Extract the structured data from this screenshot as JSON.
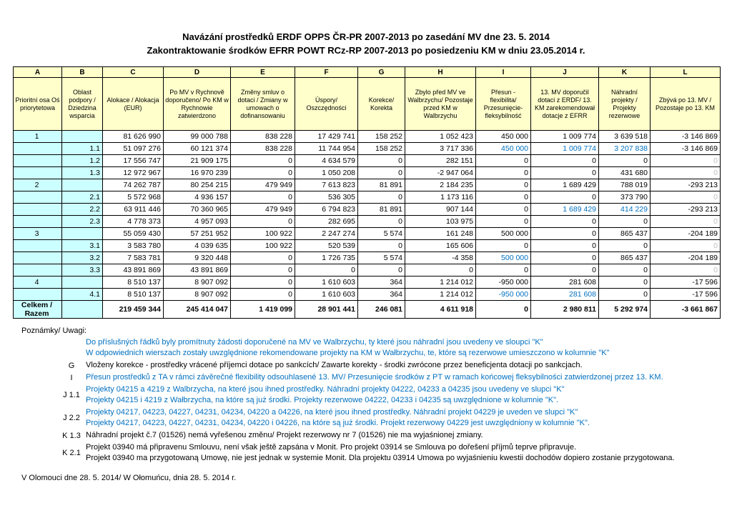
{
  "title": {
    "line1": "Navázání prostředků ERDF OPPS ČR-PR 2007-2013 po zasedání MV dne 23. 5. 2014",
    "line2": "Zakontraktowanie środków EFRR POWT RCz-RP 2007-2013 po posiedzeniu KM w dniu 23.05.2014 r."
  },
  "colors": {
    "header_fill": "#ffffcc",
    "axis_column_fill": "#ccffff",
    "accent_blue": "#0070c0",
    "muted_gray": "#bfbfbf"
  },
  "table": {
    "column_letters": [
      "A",
      "B",
      "C",
      "D",
      "E",
      "F",
      "G",
      "H",
      "I",
      "J",
      "K",
      "L"
    ],
    "column_headers": [
      "Prioritní osa Oś priorytetowa",
      "Oblast podpory / Dziedzina wsparcia",
      "Alokace / Alokacja (EUR)",
      "Po MV v Rychnově doporučeno/ Po KM w Rychnowie zatwierdzono",
      "Změny smluv o dotaci / Zmiany w umowach o dofinansowaniu",
      "Úspory/ Oszczędności",
      "Korekce/ Korekta",
      "Zbylo před MV ve Walbrzychu/ Pozostaje przed KM w Walbrzychu",
      "Přesun - flexibilita/ Przesunięcie- fleksybilność",
      "13. MV doporučil dotaci z ERDF/ 13. KM zarekomendował dotacje z EFRR",
      "Náhradní projekty / Projekty rezerwowe",
      "Zbývá po 13. MV / Pozostaje po 13. KM"
    ],
    "rows": [
      {
        "a": "1",
        "b": "",
        "values": [
          "81 626 990",
          "99 000 788",
          "838 228",
          "17 429 741",
          "158 252",
          "1 052 423",
          "450 000",
          "1 009 774",
          "3 639 518",
          "-3 146 869"
        ],
        "colors": [
          "",
          "",
          "",
          "",
          "",
          "",
          "",
          "",
          "",
          ""
        ]
      },
      {
        "a": "",
        "b": "1.1",
        "values": [
          "51 097 276",
          "60 121 374",
          "838 228",
          "11 744 954",
          "158 252",
          "3 717 336",
          "450 000",
          "1 009 774",
          "3 207 838",
          "-3 146 869"
        ],
        "colors": [
          "",
          "",
          "",
          "",
          "",
          "",
          "blue",
          "blue",
          "blue",
          ""
        ]
      },
      {
        "a": "",
        "b": "1.2",
        "values": [
          "17 556 747",
          "21 909 175",
          "0",
          "4 634 579",
          "0",
          "282 151",
          "0",
          "0",
          "0",
          "0"
        ],
        "colors": [
          "",
          "",
          "",
          "",
          "",
          "",
          "",
          "",
          "",
          "gray"
        ]
      },
      {
        "a": "",
        "b": "1.3",
        "values": [
          "12 972 967",
          "16 970 239",
          "0",
          "1 050 208",
          "0",
          "-2 947 064",
          "0",
          "0",
          "431 680",
          "0"
        ],
        "colors": [
          "",
          "",
          "",
          "",
          "",
          "",
          "",
          "",
          "",
          "gray"
        ]
      },
      {
        "a": "2",
        "b": "",
        "values": [
          "74 262 787",
          "80 254 215",
          "479 949",
          "7 613 823",
          "81 891",
          "2 184 235",
          "0",
          "1 689 429",
          "788 019",
          "-293 213"
        ],
        "colors": [
          "",
          "",
          "",
          "",
          "",
          "",
          "",
          "",
          "",
          ""
        ]
      },
      {
        "a": "",
        "b": "2.1",
        "values": [
          "5 572 968",
          "4 936 157",
          "0",
          "536 305",
          "0",
          "1 173 116",
          "0",
          "0",
          "373 790",
          "0"
        ],
        "colors": [
          "",
          "",
          "",
          "",
          "",
          "",
          "",
          "",
          "",
          "gray"
        ]
      },
      {
        "a": "",
        "b": "2.2",
        "values": [
          "63 911 446",
          "70 360 965",
          "479 949",
          "6 794 823",
          "81 891",
          "907 144",
          "0",
          "1 689 429",
          "414 229",
          "-293 213"
        ],
        "colors": [
          "",
          "",
          "",
          "",
          "",
          "",
          "",
          "blue",
          "blue",
          ""
        ]
      },
      {
        "a": "",
        "b": "2.3",
        "values": [
          "4 778 373",
          "4 957 093",
          "0",
          "282 695",
          "0",
          "103 975",
          "0",
          "0",
          "0",
          "0"
        ],
        "colors": [
          "",
          "",
          "",
          "",
          "",
          "",
          "",
          "",
          "",
          "gray"
        ]
      },
      {
        "a": "3",
        "b": "",
        "values": [
          "55 059 430",
          "57 251 952",
          "100 922",
          "2 247 274",
          "5 574",
          "161 248",
          "500 000",
          "0",
          "865 437",
          "-204 189"
        ],
        "colors": [
          "",
          "",
          "",
          "",
          "",
          "",
          "",
          "",
          "",
          ""
        ]
      },
      {
        "a": "",
        "b": "3.1",
        "values": [
          "3 583 780",
          "4 039 635",
          "100 922",
          "520 539",
          "0",
          "165 606",
          "0",
          "0",
          "0",
          "0"
        ],
        "colors": [
          "",
          "",
          "",
          "",
          "",
          "",
          "",
          "",
          "",
          "gray"
        ]
      },
      {
        "a": "",
        "b": "3.2",
        "values": [
          "7 583 781",
          "9 320 448",
          "0",
          "1 726 735",
          "5 574",
          "-4 358",
          "500 000",
          "0",
          "865 437",
          "-204 189"
        ],
        "colors": [
          "",
          "",
          "",
          "",
          "",
          "",
          "blue",
          "",
          "",
          ""
        ]
      },
      {
        "a": "",
        "b": "3.3",
        "values": [
          "43 891 869",
          "43 891 869",
          "0",
          "0",
          "0",
          "0",
          "0",
          "0",
          "0",
          "0"
        ],
        "colors": [
          "",
          "",
          "",
          "",
          "",
          "",
          "",
          "",
          "",
          "gray"
        ]
      },
      {
        "a": "4",
        "b": "",
        "values": [
          "8 510 137",
          "8 907 092",
          "0",
          "1 610 603",
          "364",
          "1 214 012",
          "-950 000",
          "281 608",
          "0",
          "-17 596"
        ],
        "colors": [
          "",
          "",
          "",
          "",
          "",
          "",
          "",
          "",
          "",
          ""
        ]
      },
      {
        "a": "",
        "b": "4.1",
        "values": [
          "8 510 137",
          "8 907 092",
          "0",
          "1 610 603",
          "364",
          "1 214 012",
          "-950 000",
          "281 608",
          "0",
          "-17 596"
        ],
        "colors": [
          "",
          "",
          "",
          "",
          "",
          "",
          "blue",
          "blue",
          "",
          ""
        ]
      },
      {
        "a": "Celkem / Razem",
        "b": "",
        "values": [
          "219 459 344",
          "245 414 047",
          "1 419 099",
          "28 901 441",
          "246 081",
          "4 611 918",
          "0",
          "2 980 811",
          "5 292 974",
          "-3 661 867"
        ],
        "colors": [
          "",
          "",
          "",
          "",
          "",
          "",
          "",
          "",
          "",
          ""
        ],
        "total": true
      }
    ]
  },
  "notes": {
    "heading": "Poznámky/ Uwagi:",
    "items": [
      {
        "label": "",
        "lines": [
          {
            "text": "Do příslušných řádků byly promítnuty žádosti doporučené na MV ve Walbrzychu, ty které jsou náhradní jsou uvedeny ve sloupci \"K\"",
            "color": "blue"
          },
          {
            "text": "W odpowiednich wierszach zostały uwzględnione rekomendowane projekty na KM w Wałbrzychu, te, które są rezerwowe umieszczono w kolumnie \"K\"",
            "color": "blue"
          }
        ]
      },
      {
        "label": "G",
        "lines": [
          {
            "text": "Vloženy korekce - prostředky vrácené příjemci dotace po sankcích/ Zawarte korekty - środki zwrócone przez beneficjenta dotacji po sankcjach.",
            "color": "black"
          }
        ]
      },
      {
        "label": "I",
        "lines": [
          {
            "text": "Přesun prostředků z TA v rámci závěrečné flexibility odsouhlasené 13. MV/ Przesunięcie środków z PT w ramach końcowej fleksybilności zatwierdzonej przez 13. KM.",
            "color": "blue"
          }
        ]
      },
      {
        "label": "J 1.1",
        "lines": [
          {
            "text": "Projekty 04215 a 4219 z Walbrzycha, na které jsou ihned prostředky. Náhradní projekty 04222, 04233 a 04235 jsou uvedeny ve slupci \"K\"",
            "color": "blue"
          },
          {
            "text": "Projekty 04215 i 4219 z Wałbrzycha, na które są już środki. Projekty rezerwowe 04222, 04233 i 04235 są uwzględnione w kolumnie \"K\".",
            "color": "blue"
          }
        ]
      },
      {
        "label": "J 2.2",
        "lines": [
          {
            "text": "Projekty 04217, 04223, 04227, 04231, 04234, 04220 a 04226, na které jsou ihned prostředky. Náhradní projekt 04229 je uveden ve slupci \"K\"",
            "color": "blue"
          },
          {
            "text": "Projekty 04217, 04223, 04227, 04231, 04234, 04220 i 04226, na które są już środki. Projekt rezerwowy 04229 jest uwzględniony w kolumnie \"K\".",
            "color": "blue"
          }
        ]
      },
      {
        "label": "K 1.3",
        "lines": [
          {
            "text": "Náhradní projekt č.7 (01526) nemá vyřešenou změnu/ Projekt rezerwowy nr 7 (01526) nie ma wyjaśnionej zmiany.",
            "color": "black"
          }
        ]
      },
      {
        "label": "K 2.1",
        "lines": [
          {
            "text": "Projekt 03940 má připravenu Smlouvu, není však ještě zapsána v Monit. Pro projekt 03914 se Smlouva po dořešení příjmů teprve připravuje.",
            "color": "black"
          },
          {
            "text": "Projekt 03940 ma przygotowaną Umowę, nie jest jednak w systemie Monit. Dla projektu 03914 Umowa po wyjaśnieniu kwestii dochodów dopiero zostanie przygotowana.",
            "color": "black"
          }
        ]
      }
    ]
  },
  "footer": "V Olomouci dne 28. 5. 2014/ W Ołomuńcu, dnia  28. 5. 2014 r."
}
